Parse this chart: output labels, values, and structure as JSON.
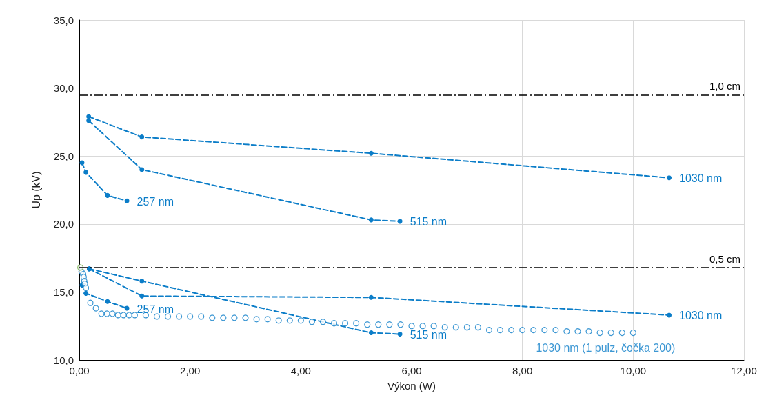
{
  "chart_data": {
    "type": "line",
    "xlabel": "Výkon (W)",
    "ylabel": "Up (kV)",
    "xlim": [
      0,
      12
    ],
    "xticks": [
      {
        "value": 0,
        "label": "0,00"
      },
      {
        "value": 2,
        "label": "2,00"
      },
      {
        "value": 4,
        "label": "4,00"
      },
      {
        "value": 6,
        "label": "6,00"
      },
      {
        "value": 8,
        "label": "8,00"
      },
      {
        "value": 10,
        "label": "10,00"
      },
      {
        "value": 12,
        "label": "12,00"
      }
    ],
    "ylim": [
      10,
      35
    ],
    "yticks": [
      {
        "value": 10,
        "label": "10,0"
      },
      {
        "value": 15,
        "label": "15,0"
      },
      {
        "value": 20,
        "label": "20,0"
      },
      {
        "value": 25,
        "label": "25,0"
      },
      {
        "value": 30,
        "label": "30,0"
      },
      {
        "value": 35,
        "label": "35,0"
      }
    ],
    "grid": true,
    "marker": "circle",
    "line_style": "dashed",
    "ref_lines": [
      {
        "axis": "y",
        "value": 29.5,
        "label": "1,0 cm",
        "color": "#000000",
        "line_style": "dashed"
      },
      {
        "axis": "y",
        "value": 16.8,
        "label": "0,5 cm",
        "color": "#000000",
        "line_style": "dashed"
      }
    ],
    "series": [
      {
        "name": "1030 nm",
        "color": "#0b7dc8",
        "x": [
          0.17,
          1.13,
          5.27,
          10.65
        ],
        "values": [
          27.9,
          26.4,
          25.2,
          23.4
        ]
      },
      {
        "name": "515 nm",
        "color": "#0b7dc8",
        "x": [
          0.17,
          1.13,
          5.27,
          5.79
        ],
        "values": [
          27.6,
          24.0,
          20.3,
          20.2
        ]
      },
      {
        "name": "257 nm",
        "color": "#0b7dc8",
        "x": [
          0.05,
          0.12,
          0.51,
          0.86
        ],
        "values": [
          24.5,
          23.8,
          22.1,
          21.7
        ]
      },
      {
        "name": "1030 nm",
        "color": "#0b7dc8",
        "x": [
          0.18,
          1.13,
          5.27,
          10.65
        ],
        "values": [
          16.7,
          14.7,
          14.6,
          13.3
        ]
      },
      {
        "name": "515 nm",
        "color": "#0b7dc8",
        "x": [
          0.18,
          1.13,
          5.27,
          5.79
        ],
        "values": [
          16.7,
          15.8,
          12.0,
          11.9
        ]
      },
      {
        "name": "257 nm",
        "color": "#0b7dc8",
        "x": [
          0.05,
          0.12,
          0.51,
          0.86
        ],
        "values": [
          15.5,
          14.9,
          14.3,
          13.8
        ]
      },
      {
        "name": "1030 nm (1 pulz, čočka 200)",
        "type": "scatter",
        "color": "#0b7dc8",
        "x": [
          0.04,
          0.07,
          0.08,
          0.09,
          0.1,
          0.12,
          0.2,
          0.3,
          0.4,
          0.5,
          0.6,
          0.7,
          0.8,
          0.9,
          1.0,
          1.2,
          1.4,
          1.6,
          1.8,
          2.0,
          2.2,
          2.4,
          2.6,
          2.8,
          3.0,
          3.2,
          3.4,
          3.6,
          3.8,
          4.0,
          4.2,
          4.4,
          4.6,
          4.8,
          5.0,
          5.2,
          5.4,
          5.6,
          5.8,
          6.0,
          6.2,
          6.4,
          6.6,
          6.8,
          7.0,
          7.2,
          7.4,
          7.6,
          7.8,
          8.0,
          8.2,
          8.4,
          8.6,
          8.8,
          9.0,
          9.2,
          9.4,
          9.6,
          9.8,
          10.0
        ],
        "values": [
          16.5,
          16.3,
          16.1,
          15.8,
          15.6,
          15.3,
          14.2,
          13.8,
          13.4,
          13.4,
          13.4,
          13.3,
          13.3,
          13.3,
          13.3,
          13.3,
          13.2,
          13.2,
          13.2,
          13.2,
          13.2,
          13.1,
          13.1,
          13.1,
          13.1,
          13.0,
          13.0,
          12.9,
          12.9,
          12.9,
          12.8,
          12.8,
          12.7,
          12.7,
          12.7,
          12.6,
          12.6,
          12.6,
          12.6,
          12.5,
          12.5,
          12.5,
          12.4,
          12.4,
          12.4,
          12.4,
          12.2,
          12.2,
          12.2,
          12.2,
          12.2,
          12.2,
          12.2,
          12.1,
          12.1,
          12.1,
          12.0,
          12.0,
          12.0,
          12.0
        ]
      },
      {
        "type": "scatter",
        "color": "#70ad47",
        "x": [
          0.02
        ],
        "values": [
          16.8
        ]
      }
    ]
  }
}
